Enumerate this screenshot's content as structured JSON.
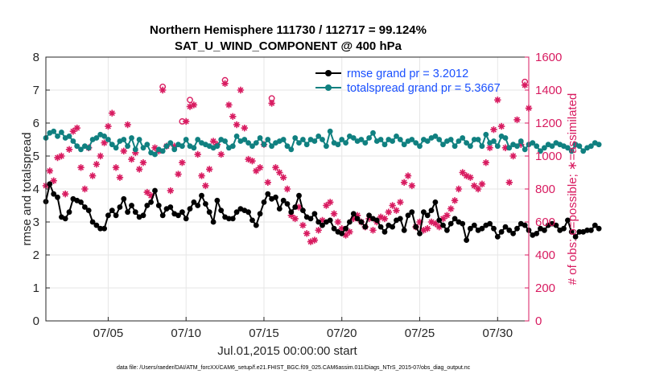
{
  "chart_data": {
    "type": "line",
    "title_line1": "Northern Hemisphere 111730 / 112717 = 99.124%",
    "title_line2": "SAT_U_WIND_COMPONENT @ 400 hPa",
    "xlabel": "Jul.01,2015 00:00:00 start",
    "ylabel_left": "rmse and totalspread",
    "ylabel_right": "# of obs: o=possible; ∗=assimilated",
    "footnote": "data file: /Users/raeder/DAI/ATM_forcXX/CAM6_setup/f.e21.FHIST_BGC.f09_025.CAM6assim.011/Diags_NTrS_2015-07/obs_diag_output.nc",
    "xlim": [
      1.0,
      32.0
    ],
    "ylim_left": [
      0,
      8
    ],
    "ylim_right": [
      0,
      1600
    ],
    "x_ticks": [
      {
        "value": 5,
        "label": "07/05"
      },
      {
        "value": 10,
        "label": "07/10"
      },
      {
        "value": 15,
        "label": "07/15"
      },
      {
        "value": 20,
        "label": "07/20"
      },
      {
        "value": 25,
        "label": "07/25"
      },
      {
        "value": 30,
        "label": "07/30"
      }
    ],
    "y_ticks_left": [
      "0",
      "1",
      "2",
      "3",
      "4",
      "5",
      "6",
      "7",
      "8"
    ],
    "y_ticks_right": [
      "0",
      "200",
      "400",
      "600",
      "800",
      "1000",
      "1200",
      "1400",
      "1600"
    ],
    "grid": true,
    "legend_position": "top-right",
    "colors": {
      "rmse": "#000000",
      "totalspread": "#108080",
      "obs": "#d81b60",
      "legend_text": "#1a50ff"
    },
    "x_start": 1.0,
    "x_step": 0.25,
    "series": [
      {
        "name": "rmse grand pr = 3.2012",
        "values": [
          3.62,
          4.15,
          3.85,
          3.75,
          3.15,
          3.1,
          3.3,
          3.7,
          3.65,
          3.6,
          3.45,
          3.35,
          3.0,
          2.9,
          2.8,
          2.8,
          3.2,
          3.35,
          3.2,
          3.45,
          3.7,
          3.3,
          3.5,
          3.3,
          3.15,
          3.2,
          3.5,
          3.6,
          3.95,
          3.5,
          3.2,
          3.4,
          3.45,
          3.25,
          3.2,
          3.3,
          3.1,
          3.4,
          3.6,
          3.5,
          3.8,
          3.55,
          3.3,
          3.0,
          3.65,
          3.35,
          3.15,
          3.1,
          3.1,
          3.3,
          3.4,
          3.35,
          3.3,
          3.05,
          2.9,
          3.25,
          3.6,
          3.85,
          3.7,
          3.75,
          3.4,
          3.65,
          3.55,
          3.3,
          3.45,
          3.8,
          3.35,
          3.15,
          3.1,
          3.25,
          3.0,
          2.9,
          3.0,
          3.05,
          2.8,
          2.7,
          2.65,
          2.8,
          3.0,
          3.25,
          3.1,
          3.0,
          2.85,
          3.2,
          3.1,
          3.05,
          2.85,
          2.7,
          2.9,
          2.85,
          3.05,
          3.1,
          2.75,
          3.2,
          3.3,
          2.85,
          2.65,
          3.3,
          3.2,
          3.35,
          3.6,
          3.05,
          2.9,
          2.75,
          2.95,
          3.1,
          3.0,
          2.95,
          2.45,
          2.8,
          2.9,
          2.75,
          2.8,
          2.9,
          2.95,
          2.8,
          2.55,
          2.7,
          2.85,
          2.75,
          2.65,
          2.8,
          2.95,
          2.9,
          2.75,
          2.6,
          2.65,
          2.8,
          2.75,
          2.9,
          2.95,
          2.9,
          2.75,
          2.8,
          3.05,
          2.7,
          2.55,
          2.7,
          2.7,
          2.75,
          2.75,
          2.9,
          2.8
        ]
      },
      {
        "name": "totalspread grand pr = 5.3667",
        "values": [
          5.55,
          5.7,
          5.75,
          5.6,
          5.72,
          5.55,
          5.6,
          5.45,
          5.3,
          5.2,
          5.3,
          5.25,
          5.5,
          5.55,
          5.65,
          5.6,
          5.5,
          5.35,
          5.25,
          5.45,
          5.5,
          5.3,
          5.55,
          5.2,
          5.5,
          5.25,
          5.35,
          5.1,
          5.05,
          5.2,
          5.15,
          5.3,
          5.4,
          5.2,
          5.35,
          5.3,
          5.5,
          5.3,
          5.25,
          5.5,
          5.4,
          5.35,
          5.3,
          5.25,
          5.3,
          5.5,
          5.45,
          5.25,
          5.3,
          5.6,
          5.45,
          5.5,
          5.4,
          5.3,
          5.4,
          5.55,
          5.35,
          5.5,
          5.3,
          5.4,
          5.45,
          5.5,
          5.3,
          5.2,
          5.55,
          5.4,
          5.5,
          5.35,
          5.5,
          5.45,
          5.6,
          5.5,
          5.3,
          5.75,
          5.4,
          5.35,
          5.5,
          5.4,
          5.6,
          5.55,
          5.45,
          5.5,
          5.4,
          5.55,
          5.7,
          5.45,
          5.5,
          5.35,
          5.5,
          5.45,
          5.6,
          5.5,
          5.35,
          5.45,
          5.5,
          5.4,
          5.3,
          5.5,
          5.45,
          5.55,
          5.6,
          5.5,
          5.35,
          5.45,
          5.5,
          5.3,
          5.45,
          5.55,
          5.4,
          5.3,
          5.5,
          5.5,
          5.3,
          5.65,
          5.4,
          5.45,
          5.3,
          5.6,
          5.55,
          5.25,
          5.35,
          5.3,
          5.45,
          5.2,
          5.35,
          5.4,
          5.3,
          5.15,
          5.25,
          5.35,
          5.3,
          5.4,
          5.35,
          5.3,
          5.25,
          5.15,
          5.35,
          5.3,
          5.15,
          5.25,
          5.3,
          5.4,
          5.35
        ]
      }
    ],
    "obs_assimilated": [
      {
        "x": 1.0,
        "y": 820
      },
      {
        "x": 1.25,
        "y": 910
      },
      {
        "x": 1.5,
        "y": 850
      },
      {
        "x": 1.75,
        "y": 990
      },
      {
        "x": 2.0,
        "y": 1000
      },
      {
        "x": 2.25,
        "y": 770
      },
      {
        "x": 2.5,
        "y": 1040
      },
      {
        "x": 2.75,
        "y": 1150
      },
      {
        "x": 3.0,
        "y": 1170
      },
      {
        "x": 3.25,
        "y": 930
      },
      {
        "x": 3.5,
        "y": 800
      },
      {
        "x": 3.75,
        "y": 1050
      },
      {
        "x": 4.0,
        "y": 880
      },
      {
        "x": 4.25,
        "y": 950
      },
      {
        "x": 4.5,
        "y": 1000
      },
      {
        "x": 4.75,
        "y": 1080
      },
      {
        "x": 5.0,
        "y": 1180
      },
      {
        "x": 5.25,
        "y": 1260
      },
      {
        "x": 5.5,
        "y": 930
      },
      {
        "x": 5.75,
        "y": 870
      },
      {
        "x": 6.0,
        "y": 1030
      },
      {
        "x": 6.25,
        "y": 1190
      },
      {
        "x": 6.5,
        "y": 980
      },
      {
        "x": 6.75,
        "y": 1020
      },
      {
        "x": 7.0,
        "y": 920
      },
      {
        "x": 7.25,
        "y": 960
      },
      {
        "x": 7.5,
        "y": 780
      },
      {
        "x": 7.75,
        "y": 760
      },
      {
        "x": 8.0,
        "y": 1050
      },
      {
        "x": 8.25,
        "y": 1030
      },
      {
        "x": 8.5,
        "y": 1400
      },
      {
        "x": 8.75,
        "y": 1060
      },
      {
        "x": 9.0,
        "y": 790
      },
      {
        "x": 9.25,
        "y": 1060
      },
      {
        "x": 9.5,
        "y": 890
      },
      {
        "x": 9.75,
        "y": 960
      },
      {
        "x": 10.0,
        "y": 1210
      },
      {
        "x": 10.25,
        "y": 1300
      },
      {
        "x": 10.5,
        "y": 1310
      },
      {
        "x": 10.75,
        "y": 1010
      },
      {
        "x": 11.0,
        "y": 880
      },
      {
        "x": 11.25,
        "y": 820
      },
      {
        "x": 11.5,
        "y": 920
      },
      {
        "x": 11.75,
        "y": 1090
      },
      {
        "x": 12.0,
        "y": 1070
      },
      {
        "x": 12.25,
        "y": 1010
      },
      {
        "x": 12.5,
        "y": 1440
      },
      {
        "x": 12.75,
        "y": 1310
      },
      {
        "x": 13.0,
        "y": 1240
      },
      {
        "x": 13.25,
        "y": 1190
      },
      {
        "x": 13.5,
        "y": 1400
      },
      {
        "x": 13.75,
        "y": 1170
      },
      {
        "x": 14.0,
        "y": 980
      },
      {
        "x": 14.25,
        "y": 970
      },
      {
        "x": 14.5,
        "y": 910
      },
      {
        "x": 14.75,
        "y": 930
      },
      {
        "x": 15.0,
        "y": 1070
      },
      {
        "x": 15.25,
        "y": 840
      },
      {
        "x": 15.5,
        "y": 1320
      },
      {
        "x": 15.75,
        "y": 930
      },
      {
        "x": 16.0,
        "y": 900
      },
      {
        "x": 16.25,
        "y": 870
      },
      {
        "x": 16.5,
        "y": 800
      },
      {
        "x": 16.75,
        "y": 640
      },
      {
        "x": 17.0,
        "y": 620
      },
      {
        "x": 17.25,
        "y": 690
      },
      {
        "x": 17.5,
        "y": 580
      },
      {
        "x": 17.75,
        "y": 530
      },
      {
        "x": 18.0,
        "y": 480
      },
      {
        "x": 18.25,
        "y": 490
      },
      {
        "x": 18.5,
        "y": 550
      },
      {
        "x": 18.75,
        "y": 610
      },
      {
        "x": 19.0,
        "y": 700
      },
      {
        "x": 19.25,
        "y": 720
      },
      {
        "x": 19.5,
        "y": 650
      },
      {
        "x": 19.75,
        "y": 600
      },
      {
        "x": 20.0,
        "y": 560
      },
      {
        "x": 20.25,
        "y": 520
      },
      {
        "x": 20.5,
        "y": 540
      },
      {
        "x": 20.75,
        "y": 620
      },
      {
        "x": 21.0,
        "y": 640
      },
      {
        "x": 21.25,
        "y": 600
      },
      {
        "x": 21.5,
        "y": 570
      },
      {
        "x": 21.75,
        "y": 620
      },
      {
        "x": 22.0,
        "y": 550
      },
      {
        "x": 22.25,
        "y": 600
      },
      {
        "x": 22.5,
        "y": 630
      },
      {
        "x": 22.75,
        "y": 620
      },
      {
        "x": 23.0,
        "y": 660
      },
      {
        "x": 23.25,
        "y": 700
      },
      {
        "x": 23.5,
        "y": 670
      },
      {
        "x": 23.75,
        "y": 720
      },
      {
        "x": 24.0,
        "y": 840
      },
      {
        "x": 24.25,
        "y": 880
      },
      {
        "x": 24.5,
        "y": 820
      },
      {
        "x": 24.75,
        "y": 570
      },
      {
        "x": 25.0,
        "y": 600
      },
      {
        "x": 25.25,
        "y": 550
      },
      {
        "x": 25.5,
        "y": 560
      },
      {
        "x": 25.75,
        "y": 600
      },
      {
        "x": 26.0,
        "y": 590
      },
      {
        "x": 26.25,
        "y": 570
      },
      {
        "x": 26.5,
        "y": 620
      },
      {
        "x": 26.75,
        "y": 640
      },
      {
        "x": 27.0,
        "y": 680
      },
      {
        "x": 27.25,
        "y": 730
      },
      {
        "x": 27.5,
        "y": 800
      },
      {
        "x": 27.75,
        "y": 900
      },
      {
        "x": 28.0,
        "y": 880
      },
      {
        "x": 28.25,
        "y": 870
      },
      {
        "x": 28.5,
        "y": 820
      },
      {
        "x": 28.75,
        "y": 800
      },
      {
        "x": 29.0,
        "y": 830
      },
      {
        "x": 29.25,
        "y": 960
      },
      {
        "x": 29.5,
        "y": 1050
      },
      {
        "x": 29.75,
        "y": 1160
      },
      {
        "x": 30.0,
        "y": 1340
      },
      {
        "x": 30.25,
        "y": 1180
      },
      {
        "x": 30.5,
        "y": 1050
      },
      {
        "x": 30.75,
        "y": 840
      },
      {
        "x": 31.0,
        "y": 1000
      },
      {
        "x": 31.25,
        "y": 1220
      },
      {
        "x": 31.5,
        "y": 1070
      },
      {
        "x": 31.75,
        "y": 1430
      },
      {
        "x": 32.0,
        "y": 1290
      }
    ],
    "obs_possible": [
      {
        "x": 8.5,
        "y": 1420
      },
      {
        "x": 10.25,
        "y": 1340
      },
      {
        "x": 15.5,
        "y": 1350
      },
      {
        "x": 9.75,
        "y": 1210
      },
      {
        "x": 12.5,
        "y": 1460
      },
      {
        "x": 31.75,
        "y": 1450
      }
    ]
  }
}
